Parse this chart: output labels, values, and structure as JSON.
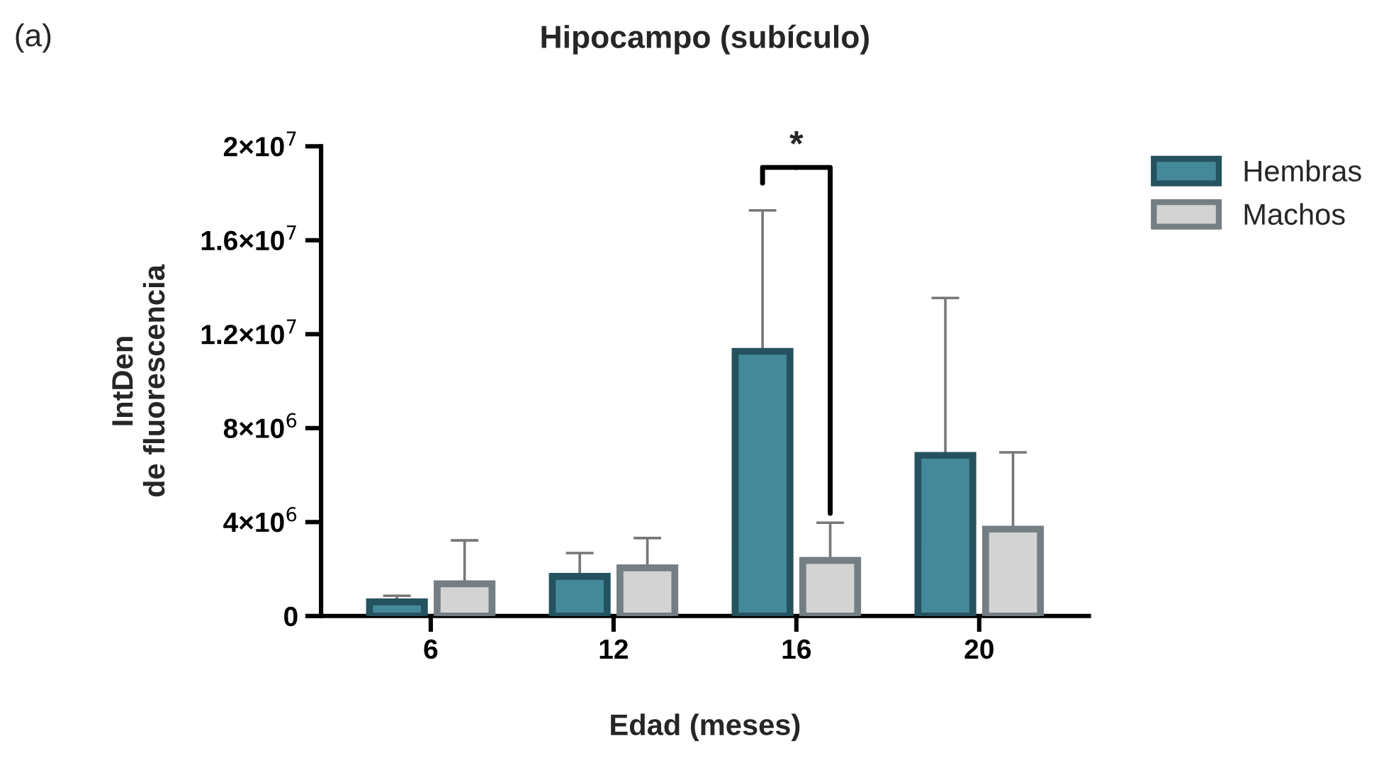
{
  "chart_data": {
    "type": "bar",
    "title": "Hipocampo (subículo)",
    "xlabel": "Edad (meses)",
    "ylabel": "IntDen\nde fluorescencia",
    "categories": [
      "6",
      "12",
      "16",
      "20"
    ],
    "series": [
      {
        "name": "Hembras",
        "color": "#44899a",
        "values": [
          600000,
          1690000,
          11270000,
          6840000
        ],
        "errors": [
          [
            600000,
            860000
          ],
          [
            1690000,
            2680000
          ],
          [
            11270000,
            17270000
          ],
          [
            6840000,
            13540000
          ]
        ]
      },
      {
        "name": "Machos",
        "color": "#d3d3d3",
        "values": [
          1370000,
          2050000,
          2370000,
          3700000
        ],
        "errors": [
          [
            1370000,
            3220000
          ],
          [
            2050000,
            3320000
          ],
          [
            2370000,
            3970000
          ],
          [
            3700000,
            6970000
          ]
        ]
      }
    ],
    "ylim": [
      0,
      20000000
    ],
    "yticks": [
      0,
      {
        "value": 4000000,
        "label": "4×10$^{6}$"
      },
      {
        "value": 8000000,
        "label": "8×10$^{6}$"
      },
      {
        "value": 12000000,
        "label": "1.2×10$^{7}$"
      },
      {
        "value": 16000000,
        "label": "1.6×10$^{7}$"
      },
      {
        "value": 20000000,
        "label": "2×10$^{7}$"
      }
    ],
    "annotations": [
      "(a)",
      "*"
    ],
    "grid": false,
    "legend": "top right"
  }
}
